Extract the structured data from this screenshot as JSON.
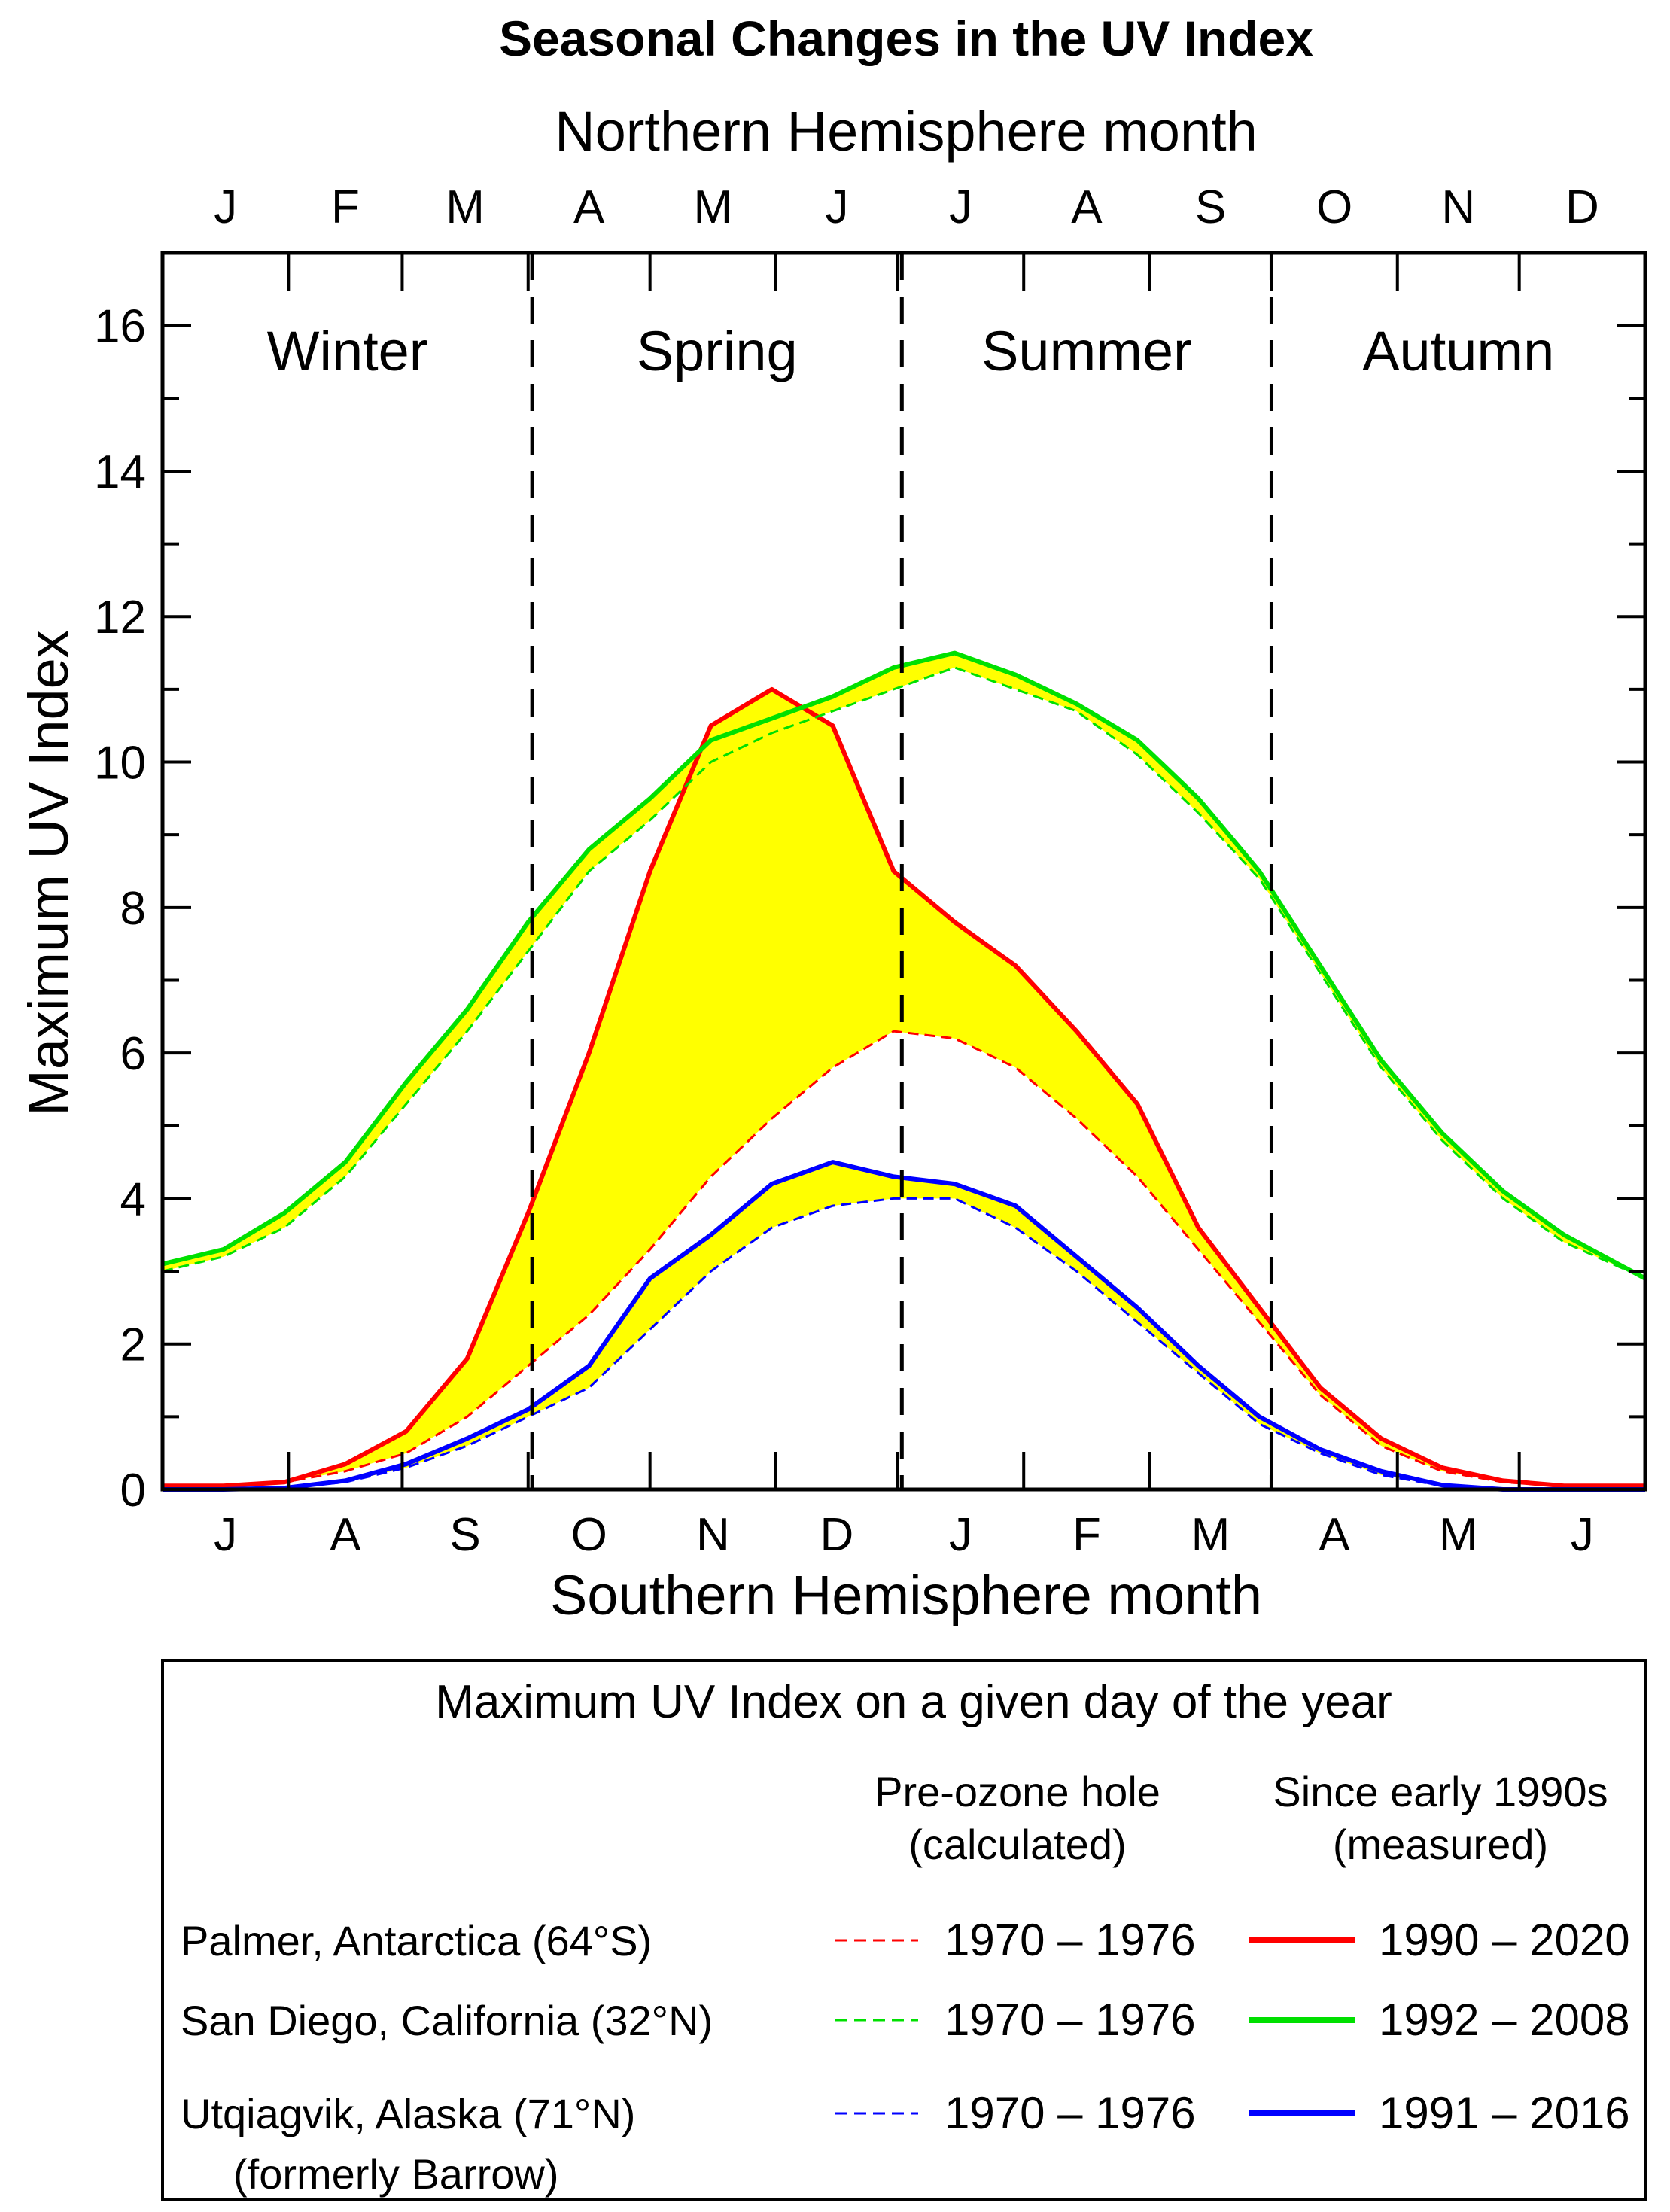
{
  "chart_data": {
    "type": "line",
    "title": "Seasonal Changes in the UV Index",
    "top_axis_label": "Northern Hemisphere month",
    "bottom_axis_label": "Southern Hemisphere month",
    "ylabel": "Maximum UV Index",
    "ylim": [
      0,
      17
    ],
    "yticks": [
      "0",
      "2",
      "4",
      "6",
      "8",
      "10",
      "12",
      "14",
      "16"
    ],
    "xlim_day": [
      0,
      365
    ],
    "north_months": [
      "J",
      "F",
      "M",
      "A",
      "M",
      "J",
      "J",
      "A",
      "S",
      "O",
      "N",
      "D"
    ],
    "south_months": [
      "J",
      "A",
      "S",
      "O",
      "N",
      "D",
      "J",
      "F",
      "M",
      "A",
      "M",
      "J"
    ],
    "seasons": [
      "Winter",
      "Spring",
      "Summer",
      "Autumn"
    ],
    "season_boundaries_day": [
      91,
      182,
      273
    ],
    "fill_color": "#ffff00",
    "x_day": [
      0,
      15,
      30,
      45,
      60,
      75,
      90,
      105,
      120,
      135,
      150,
      165,
      180,
      195,
      210,
      225,
      240,
      255,
      270,
      285,
      300,
      315,
      330,
      345,
      365
    ],
    "series": [
      {
        "name": "Palmer, Antarctica (64°S)",
        "color": "#ff0000",
        "pre_label": "1970 – 1976",
        "measured_label": "1990 – 2020",
        "pre": [
          0.05,
          0.05,
          0.1,
          0.25,
          0.5,
          1.0,
          1.7,
          2.4,
          3.3,
          4.3,
          5.1,
          5.8,
          6.3,
          6.2,
          5.8,
          5.1,
          4.3,
          3.3,
          2.3,
          1.3,
          0.6,
          0.25,
          0.1,
          0.05,
          0.05
        ],
        "measured": [
          0.05,
          0.05,
          0.1,
          0.35,
          0.8,
          1.8,
          3.8,
          6.0,
          8.5,
          10.5,
          11.0,
          10.5,
          8.5,
          7.8,
          7.2,
          6.3,
          5.3,
          3.6,
          2.5,
          1.4,
          0.7,
          0.3,
          0.12,
          0.05,
          0.05
        ]
      },
      {
        "name": "San Diego, California (32°N)",
        "color": "#00e000",
        "pre_label": "1970 – 1976",
        "measured_label": "1992 – 2008",
        "pre": [
          3.0,
          3.2,
          3.6,
          4.3,
          5.3,
          6.3,
          7.4,
          8.5,
          9.2,
          10.0,
          10.4,
          10.7,
          11.0,
          11.3,
          11.0,
          10.7,
          10.1,
          9.3,
          8.4,
          7.1,
          5.8,
          4.8,
          4.0,
          3.4,
          2.9
        ],
        "measured": [
          3.1,
          3.3,
          3.8,
          4.5,
          5.6,
          6.6,
          7.8,
          8.8,
          9.5,
          10.3,
          10.6,
          10.9,
          11.3,
          11.5,
          11.2,
          10.8,
          10.3,
          9.5,
          8.5,
          7.2,
          5.9,
          4.9,
          4.1,
          3.5,
          2.9
        ]
      },
      {
        "name": "Utqiagvik, Alaska (71°N)",
        "name_line2": "(formerly Barrow)",
        "color": "#0000ff",
        "pre_label": "1970 – 1976",
        "measured_label": "1991 – 2016",
        "pre": [
          0,
          0,
          0.02,
          0.1,
          0.3,
          0.6,
          1.0,
          1.4,
          2.2,
          3.0,
          3.6,
          3.9,
          4.0,
          4.0,
          3.6,
          3.0,
          2.3,
          1.6,
          0.9,
          0.5,
          0.2,
          0.05,
          0,
          0,
          0
        ],
        "measured": [
          0,
          0,
          0.02,
          0.12,
          0.35,
          0.7,
          1.1,
          1.7,
          2.9,
          3.5,
          4.2,
          4.5,
          4.3,
          4.2,
          3.9,
          3.2,
          2.5,
          1.7,
          1.0,
          0.55,
          0.25,
          0.06,
          0,
          0,
          0
        ]
      }
    ],
    "legend": {
      "title": "Maximum UV Index on a given day of the year",
      "col1_header_line1": "Pre-ozone hole",
      "col1_header_line2": "(calculated)",
      "col2_header_line1": "Since early 1990s",
      "col2_header_line2": "(measured)"
    }
  }
}
